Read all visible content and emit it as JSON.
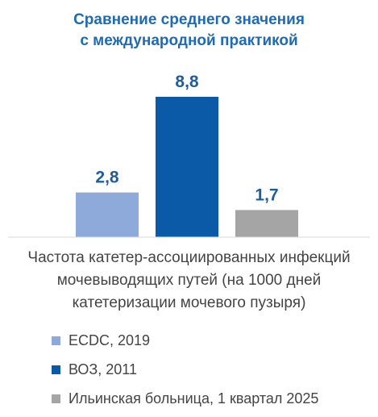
{
  "chart_data": {
    "type": "bar",
    "title_lines": [
      "Сравнение среднего значения",
      "с международной практикой"
    ],
    "categories": [
      "ECDC, 2019",
      "ВОЗ, 2011",
      "Ильинская больница, 1 квартал 2025"
    ],
    "values": [
      2.8,
      8.8,
      1.7
    ],
    "value_labels": [
      "2,8",
      "8,8",
      "1,7"
    ],
    "colors": [
      "#8eaadb",
      "#0b5aa8",
      "#a5a5a5"
    ],
    "xlabel_lines": [
      "Частота катетер-ассоциированных инфекций",
      "мочевыводящих путей (на 1000 дней",
      "катетеризации мочевого пузыря)"
    ],
    "ylim": [
      0,
      8.8
    ],
    "legend": {
      "position": "bottom",
      "entries": [
        "ECDC, 2019",
        "ВОЗ, 2011",
        "Ильинская больница, 1 квартал 2025"
      ]
    },
    "grid": false
  }
}
